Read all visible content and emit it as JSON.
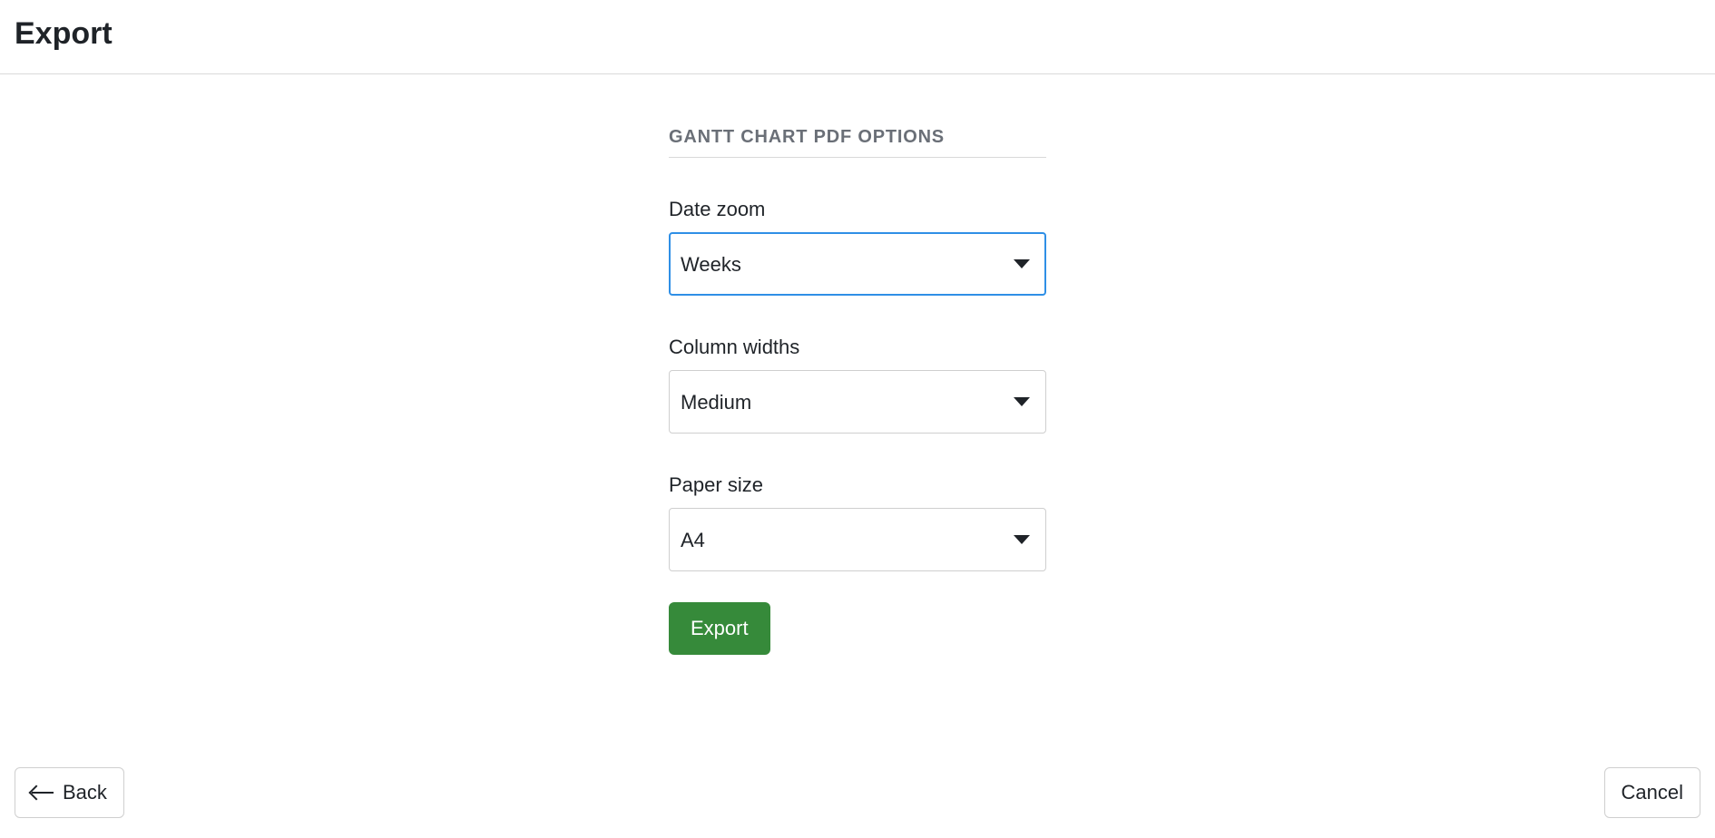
{
  "header": {
    "title": "Export"
  },
  "section": {
    "title": "GANTT CHART PDF OPTIONS"
  },
  "fields": {
    "date_zoom": {
      "label": "Date zoom",
      "value": "Weeks",
      "focused": true
    },
    "column_widths": {
      "label": "Column widths",
      "value": "Medium",
      "focused": false
    },
    "paper_size": {
      "label": "Paper size",
      "value": "A4",
      "focused": false
    }
  },
  "buttons": {
    "submit": "Export",
    "back": "Back",
    "cancel": "Cancel"
  },
  "colors": {
    "primary_button_bg": "#368a3a",
    "primary_button_text": "#ffffff",
    "focus_border": "#2f8fe6",
    "section_title": "#6a6f77",
    "border": "#cfcfcf",
    "text": "#1f2328"
  }
}
